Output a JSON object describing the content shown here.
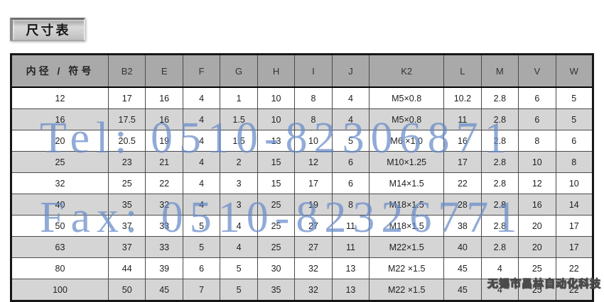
{
  "page": {
    "title": "尺寸表",
    "company_watermark": "无锡市昌林自动化科技",
    "watermarks": {
      "tel": "Tel: 0510-82306871",
      "fax": "Fax: 0510-82326771"
    }
  },
  "table": {
    "headers": [
      "内径 / 符号",
      "B2",
      "E",
      "F",
      "G",
      "H",
      "I",
      "J",
      "K2",
      "L",
      "M",
      "V",
      "W"
    ],
    "rows": [
      [
        "12",
        "17",
        "16",
        "4",
        "1",
        "10",
        "8",
        "4",
        "M5×0.8",
        "10.2",
        "2.8",
        "6",
        "5"
      ],
      [
        "16",
        "17.5",
        "16",
        "4",
        "1.5",
        "10",
        "8",
        "4",
        "M5×0.8",
        "11",
        "2.8",
        "6",
        "5"
      ],
      [
        "20",
        "20.5",
        "19",
        "4",
        "1.5",
        "13",
        "10",
        "5",
        "M6 ×1.0",
        "16",
        "2.8",
        "8",
        "6"
      ],
      [
        "25",
        "23",
        "21",
        "4",
        "2",
        "15",
        "12",
        "6",
        "M10×1.25",
        "17",
        "2.8",
        "10",
        "8"
      ],
      [
        "32",
        "25",
        "22",
        "4",
        "3",
        "15",
        "17",
        "6",
        "M14×1.5",
        "22",
        "2.8",
        "12",
        "10"
      ],
      [
        "40",
        "35",
        "32",
        "4",
        "3",
        "25",
        "19",
        "8",
        "M18×1.5",
        "28",
        "2.8",
        "16",
        "14"
      ],
      [
        "50",
        "37",
        "33",
        "5",
        "4",
        "25",
        "27",
        "11",
        "M18×1.5",
        "38",
        "2.8",
        "20",
        "17"
      ],
      [
        "63",
        "37",
        "33",
        "5",
        "4",
        "25",
        "27",
        "11",
        "M22×1.5",
        "40",
        "2.8",
        "20",
        "17"
      ],
      [
        "80",
        "44",
        "39",
        "6",
        "5",
        "30",
        "32",
        "13",
        "M22 ×1.5",
        "45",
        "4",
        "25",
        "22"
      ],
      [
        "100",
        "50",
        "45",
        "7",
        "5",
        "35",
        "32",
        "13",
        "M22 ×1.5",
        "45",
        "4",
        "25",
        "22"
      ]
    ]
  },
  "colors": {
    "watermark_blue": "#678ac9",
    "header_bg": "#a9a9a9",
    "row_alt_bg": "#d5d5d5",
    "table_border": "#161616"
  }
}
